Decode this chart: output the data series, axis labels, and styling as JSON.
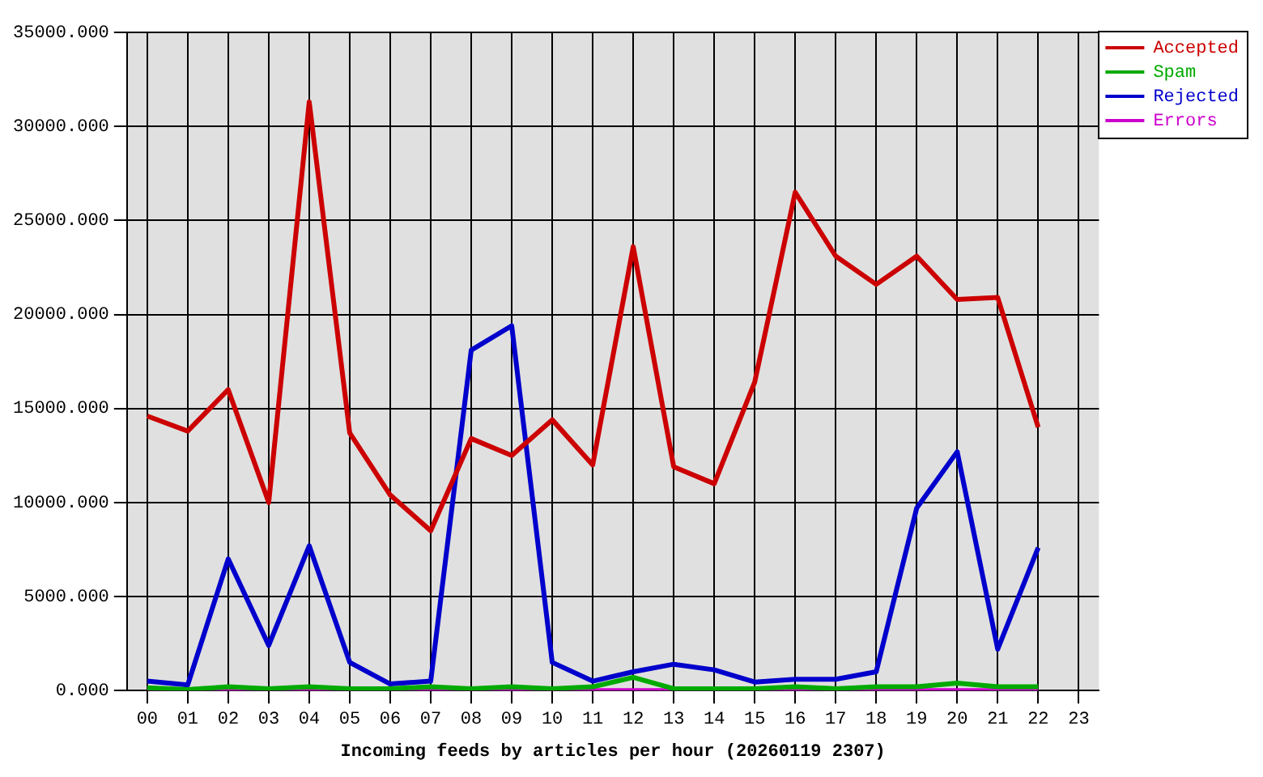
{
  "chart_data": {
    "type": "line",
    "xlabel": "Incoming feeds by articles per hour (20260119 2307)",
    "categories": [
      "00",
      "01",
      "02",
      "03",
      "04",
      "05",
      "06",
      "07",
      "08",
      "09",
      "10",
      "11",
      "12",
      "13",
      "14",
      "15",
      "16",
      "17",
      "18",
      "19",
      "20",
      "21",
      "22",
      "23"
    ],
    "series": [
      {
        "name": "Accepted",
        "color": "#cc0000",
        "values": [
          14600,
          13800,
          16000,
          10000,
          31300,
          13700,
          10400,
          8500,
          13400,
          12500,
          14400,
          12000,
          23600,
          11900,
          11000,
          16400,
          26500,
          23100,
          21600,
          23100,
          20800,
          20900,
          14000,
          null
        ]
      },
      {
        "name": "Spam",
        "color": "#00aa00",
        "values": [
          150,
          50,
          200,
          100,
          200,
          100,
          100,
          200,
          100,
          200,
          100,
          200,
          700,
          100,
          100,
          100,
          200,
          100,
          200,
          200,
          400,
          200,
          200,
          null
        ]
      },
      {
        "name": "Rejected",
        "color": "#0000cc",
        "values": [
          500,
          300,
          7000,
          2400,
          7700,
          1500,
          350,
          500,
          18100,
          19400,
          1500,
          500,
          1000,
          1400,
          1100,
          450,
          600,
          600,
          1000,
          9700,
          12700,
          2200,
          7600,
          null
        ]
      },
      {
        "name": "Errors",
        "color": "#cc00cc",
        "values": [
          0,
          0,
          0,
          0,
          0,
          0,
          0,
          0,
          0,
          0,
          0,
          0,
          0,
          0,
          0,
          0,
          0,
          0,
          0,
          0,
          0,
          0,
          0,
          null
        ]
      }
    ],
    "ylim": [
      0,
      35000
    ],
    "yticks": [
      {
        "value": 0,
        "label": "0.000"
      },
      {
        "value": 5000,
        "label": "5000.000"
      },
      {
        "value": 10000,
        "label": "10000.000"
      },
      {
        "value": 15000,
        "label": "15000.000"
      },
      {
        "value": 20000,
        "label": "20000.000"
      },
      {
        "value": 25000,
        "label": "25000.000"
      },
      {
        "value": 30000,
        "label": "30000.000"
      },
      {
        "value": 35000,
        "label": "35000.000"
      }
    ],
    "grid": true,
    "legend": "top right",
    "marker": "none",
    "line_style": "solid"
  }
}
